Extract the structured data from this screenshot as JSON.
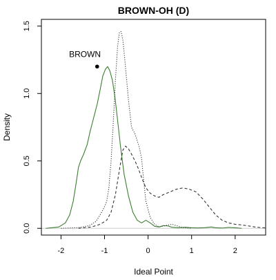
{
  "chart_data": {
    "type": "line",
    "title": "BROWN-OH (D)",
    "xlabel": "Ideal Point",
    "ylabel": "Density",
    "xlim": [
      -2.45,
      2.7
    ],
    "ylim": [
      -0.05,
      1.55
    ],
    "x_ticks": [
      -2,
      -1,
      0,
      1,
      2
    ],
    "x_tick_labels": [
      "-2",
      "-1",
      "0",
      "1",
      "2"
    ],
    "y_ticks": [
      0.0,
      0.5,
      1.0,
      1.5
    ],
    "y_tick_labels": [
      "0.0",
      "0.5",
      "1.0",
      "1.5"
    ],
    "grid": false,
    "baseline_y": 0,
    "series": [
      {
        "style": "solid",
        "color": "#3a7d2f",
        "points": [
          [
            -2.35,
            0.0
          ],
          [
            -2.2,
            0.005
          ],
          [
            -2.05,
            0.01
          ],
          [
            -1.9,
            0.04
          ],
          [
            -1.8,
            0.1
          ],
          [
            -1.72,
            0.2
          ],
          [
            -1.65,
            0.34
          ],
          [
            -1.6,
            0.45
          ],
          [
            -1.55,
            0.5
          ],
          [
            -1.48,
            0.55
          ],
          [
            -1.4,
            0.62
          ],
          [
            -1.33,
            0.72
          ],
          [
            -1.25,
            0.82
          ],
          [
            -1.17,
            0.92
          ],
          [
            -1.1,
            1.03
          ],
          [
            -1.04,
            1.13
          ],
          [
            -0.98,
            1.18
          ],
          [
            -0.93,
            1.2
          ],
          [
            -0.88,
            1.17
          ],
          [
            -0.82,
            1.1
          ],
          [
            -0.76,
            0.97
          ],
          [
            -0.7,
            0.8
          ],
          [
            -0.63,
            0.6
          ],
          [
            -0.55,
            0.4
          ],
          [
            -0.45,
            0.24
          ],
          [
            -0.35,
            0.12
          ],
          [
            -0.25,
            0.06
          ],
          [
            -0.15,
            0.04
          ],
          [
            -0.05,
            0.06
          ],
          [
            0.05,
            0.04
          ],
          [
            0.15,
            0.015
          ],
          [
            0.25,
            0.01
          ],
          [
            0.35,
            0.02
          ],
          [
            0.45,
            0.018
          ],
          [
            0.55,
            0.008
          ],
          [
            0.7,
            0.004
          ],
          [
            0.85,
            0.008
          ],
          [
            1.0,
            0.004
          ],
          [
            1.15,
            0.003
          ],
          [
            1.3,
            0.005
          ],
          [
            1.45,
            0.01
          ],
          [
            1.55,
            0.004
          ],
          [
            1.7,
            0.002
          ],
          [
            1.85,
            0.007
          ],
          [
            2.0,
            0.004
          ],
          [
            2.15,
            0.0
          ]
        ]
      },
      {
        "style": "dotted",
        "color": "#333333",
        "points": [
          [
            -2.0,
            0.0
          ],
          [
            -1.6,
            0.005
          ],
          [
            -1.35,
            0.02
          ],
          [
            -1.2,
            0.05
          ],
          [
            -1.1,
            0.1
          ],
          [
            -1.0,
            0.16
          ],
          [
            -0.95,
            0.2
          ],
          [
            -0.9,
            0.3
          ],
          [
            -0.85,
            0.5
          ],
          [
            -0.8,
            0.78
          ],
          [
            -0.75,
            1.1
          ],
          [
            -0.7,
            1.35
          ],
          [
            -0.66,
            1.45
          ],
          [
            -0.62,
            1.46
          ],
          [
            -0.58,
            1.4
          ],
          [
            -0.52,
            1.2
          ],
          [
            -0.45,
            0.95
          ],
          [
            -0.38,
            0.75
          ],
          [
            -0.3,
            0.7
          ],
          [
            -0.25,
            0.65
          ],
          [
            -0.2,
            0.6
          ],
          [
            -0.15,
            0.52
          ],
          [
            -0.1,
            0.35
          ],
          [
            -0.05,
            0.2
          ],
          [
            0.05,
            0.08
          ],
          [
            0.15,
            0.03
          ],
          [
            0.25,
            0.01
          ],
          [
            0.4,
            0.02
          ],
          [
            0.55,
            0.03
          ],
          [
            0.65,
            0.02
          ],
          [
            0.8,
            0.005
          ],
          [
            1.0,
            0.0
          ]
        ]
      },
      {
        "style": "dashed",
        "color": "#333333",
        "points": [
          [
            -1.6,
            0.0
          ],
          [
            -1.3,
            0.01
          ],
          [
            -1.1,
            0.03
          ],
          [
            -0.95,
            0.06
          ],
          [
            -0.85,
            0.12
          ],
          [
            -0.75,
            0.25
          ],
          [
            -0.65,
            0.45
          ],
          [
            -0.58,
            0.58
          ],
          [
            -0.52,
            0.61
          ],
          [
            -0.45,
            0.59
          ],
          [
            -0.38,
            0.55
          ],
          [
            -0.3,
            0.5
          ],
          [
            -0.22,
            0.44
          ],
          [
            -0.14,
            0.37
          ],
          [
            -0.05,
            0.3
          ],
          [
            0.05,
            0.26
          ],
          [
            0.15,
            0.24
          ],
          [
            0.25,
            0.23
          ],
          [
            0.35,
            0.25
          ],
          [
            0.5,
            0.27
          ],
          [
            0.65,
            0.29
          ],
          [
            0.8,
            0.3
          ],
          [
            0.95,
            0.29
          ],
          [
            1.1,
            0.27
          ],
          [
            1.25,
            0.22
          ],
          [
            1.4,
            0.16
          ],
          [
            1.55,
            0.1
          ],
          [
            1.7,
            0.06
          ],
          [
            1.85,
            0.04
          ],
          [
            2.0,
            0.03
          ],
          [
            2.15,
            0.025
          ],
          [
            2.3,
            0.018
          ],
          [
            2.45,
            0.01
          ],
          [
            2.6,
            0.005
          ],
          [
            2.7,
            0.003
          ]
        ]
      }
    ],
    "annotations": [
      {
        "text": "BROWN",
        "x": -1.45,
        "y": 1.27
      }
    ],
    "points": [
      {
        "x": -1.17,
        "y": 1.2,
        "color": "#000000"
      }
    ]
  }
}
